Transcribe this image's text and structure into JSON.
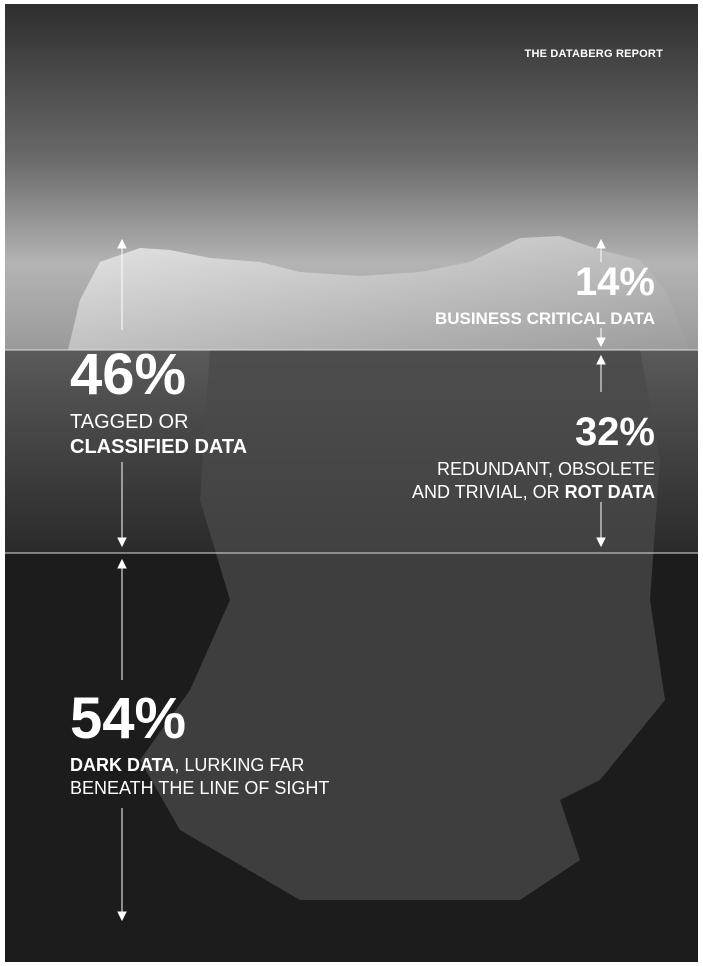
{
  "header": {
    "title": "THE DATABERG REPORT"
  },
  "callouts": [
    {
      "value": "14%",
      "lines": [
        [
          {
            "text": "BUSINESS CRITICAL DATA",
            "bold": true
          }
        ]
      ]
    },
    {
      "value": "46%",
      "lines": [
        [
          {
            "text": "TAGGED OR",
            "bold": false
          }
        ],
        [
          {
            "text": "CLASSIFIED DATA",
            "bold": true
          }
        ]
      ]
    },
    {
      "value": "32%",
      "lines": [
        [
          {
            "text": "REDUNDANT, OBSOLETE",
            "bold": false
          }
        ],
        [
          {
            "text": "AND TRIVIAL, OR ",
            "bold": false
          },
          {
            "text": "ROT DATA",
            "bold": true
          }
        ]
      ]
    },
    {
      "value": "54%",
      "lines": [
        [
          {
            "text": "DARK DATA",
            "bold": true
          },
          {
            "text": ", LURKING FAR",
            "bold": false
          }
        ],
        [
          {
            "text": "BENEATH THE LINE OF SIGHT",
            "bold": false
          }
        ]
      ]
    }
  ]
}
